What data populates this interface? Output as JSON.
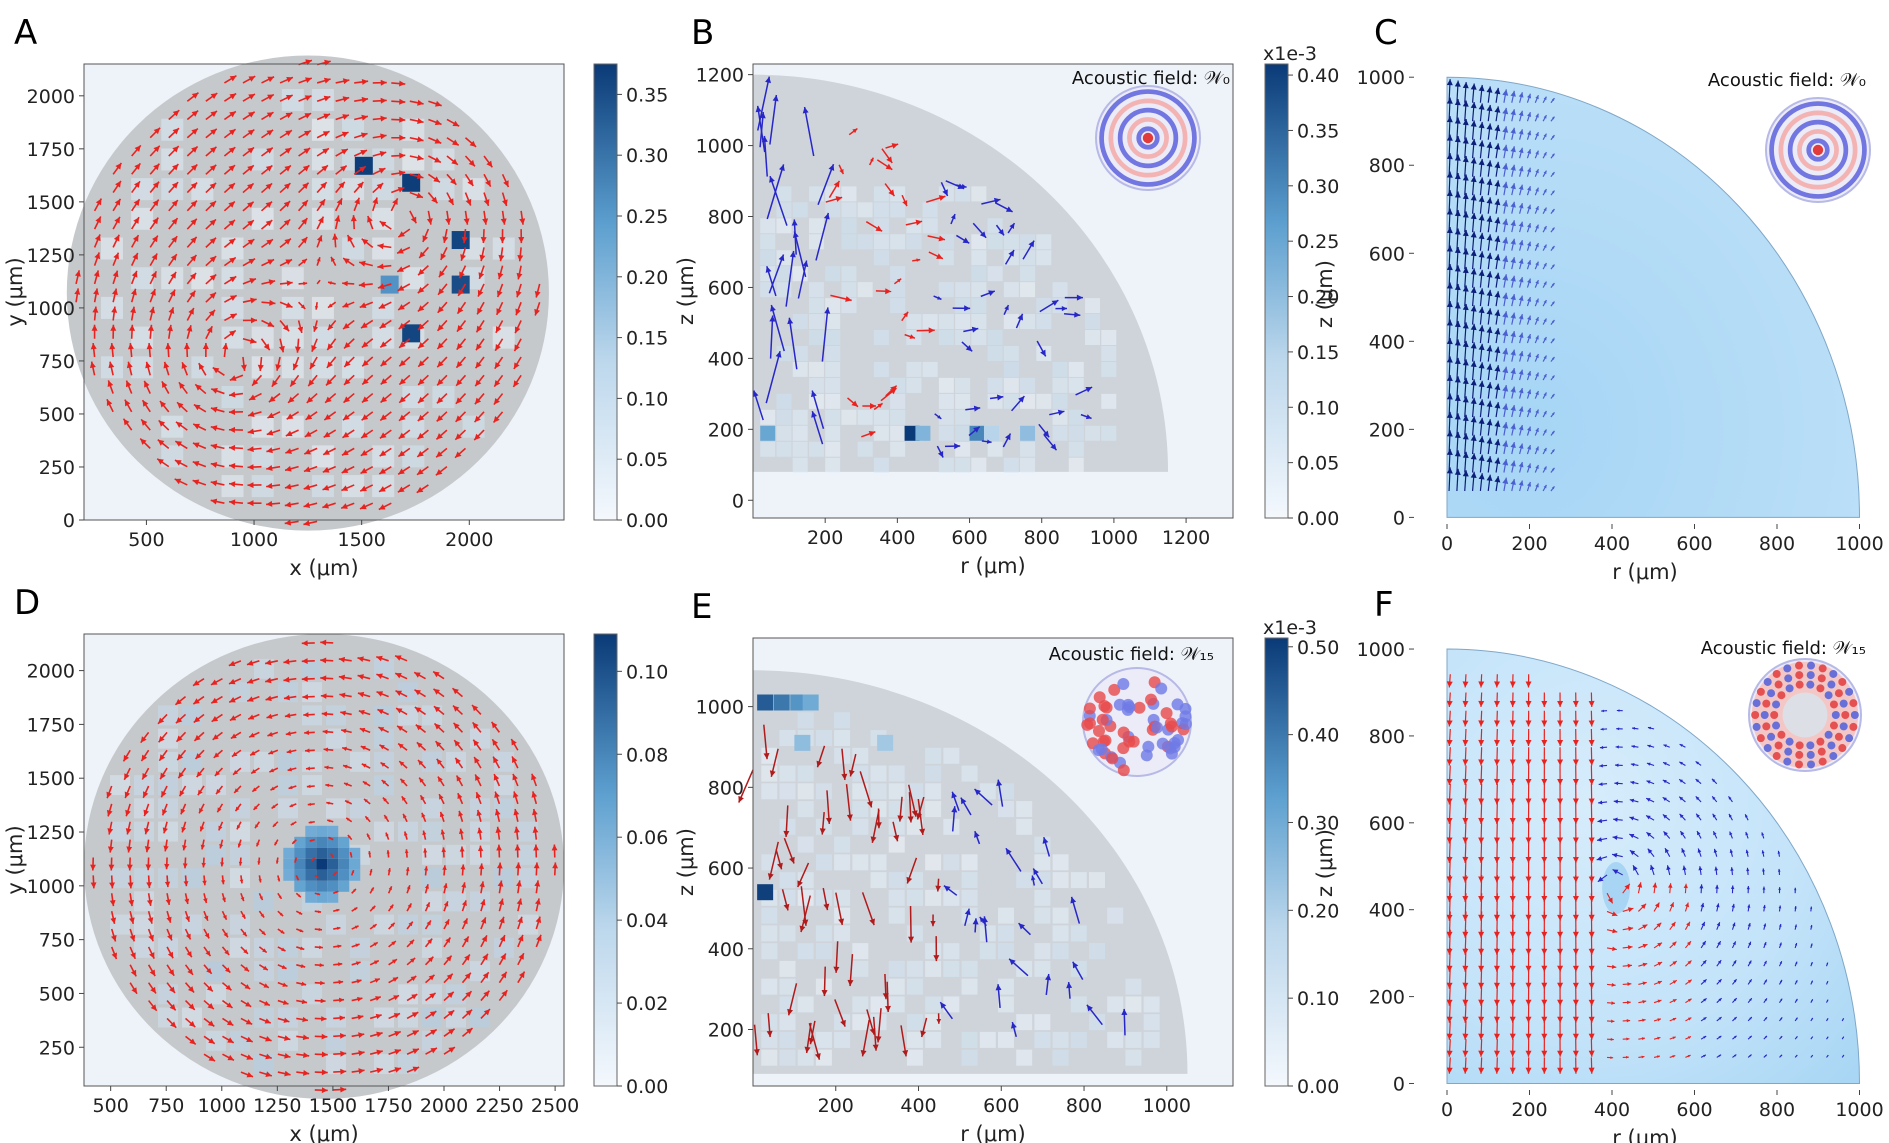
{
  "colors": {
    "arrow_red": "#e8231f",
    "arrow_dark_red": "#b11a1a",
    "arrow_blue": "#2727c8",
    "arrow_navy": "#0d1f7a",
    "disk": "#c6c9cc",
    "sim_fill": "#a9d6f5",
    "plot_bg": "#eef3fa",
    "cmap_low": "#f4f8fd",
    "cmap_high": "#0a3a77"
  },
  "chart_data": [
    {
      "panel": "A",
      "type": "quiver",
      "xlabel": "x (μm)",
      "ylabel": "y (μm)",
      "xlim": [
        210,
        2440
      ],
      "ylim": [
        0,
        2150
      ],
      "xticks": [
        "500",
        "1000",
        "1500",
        "2000"
      ],
      "xtick_values": [
        500,
        1000,
        1500,
        2000
      ],
      "yticks": [
        "0",
        "250",
        "500",
        "750",
        "1000",
        "1250",
        "1500",
        "1750",
        "2000"
      ],
      "ytick_values": [
        0,
        250,
        500,
        750,
        1000,
        1250,
        1500,
        1750,
        2000
      ],
      "colorbar_ticks": [
        "0.00",
        "0.05",
        "0.10",
        "0.15",
        "0.20",
        "0.25",
        "0.30",
        "0.35"
      ],
      "colorbar_values": [
        0,
        0.05,
        0.1,
        0.15,
        0.2,
        0.25,
        0.3,
        0.35
      ],
      "colorbar_max": 0.375,
      "colorbar_scale_label": "",
      "disk_center": [
        1250,
        1070
      ],
      "disk_radius": 1120,
      "flow": "two counter-rotating vortices (lower-left and upper-right)",
      "arrow_color": "red",
      "hot_cells": [
        [
          1510,
          1670,
          0.37
        ],
        [
          1730,
          1590,
          0.37
        ],
        [
          1960,
          1320,
          0.36
        ],
        [
          1960,
          1110,
          0.35
        ],
        [
          1730,
          880,
          0.36
        ],
        [
          1630,
          1110,
          0.26
        ]
      ]
    },
    {
      "panel": "B",
      "type": "quiver",
      "xlabel": "r (μm)",
      "ylabel": "z (μm)",
      "xlim": [
        0,
        1330
      ],
      "ylim": [
        -50,
        1230
      ],
      "xticks": [
        "200",
        "400",
        "600",
        "800",
        "1000",
        "1200"
      ],
      "xtick_values": [
        200,
        400,
        600,
        800,
        1000,
        1200
      ],
      "yticks": [
        "0",
        "200",
        "400",
        "600",
        "800",
        "1000",
        "1200"
      ],
      "ytick_values": [
        0,
        200,
        400,
        600,
        800,
        1000,
        1200
      ],
      "colorbar_ticks": [
        "0.00",
        "0.05",
        "0.10",
        "0.15",
        "0.20",
        "0.25",
        "0.30",
        "0.35",
        "0.40"
      ],
      "colorbar_values": [
        0,
        0.05,
        0.1,
        0.15,
        0.2,
        0.25,
        0.3,
        0.35,
        0.4
      ],
      "colorbar_max": 0.41,
      "colorbar_scale_label": "x1e-3",
      "annotation": "Acoustic field: 𝒲₀",
      "arrow_colors": "blue (left) and red (centre)",
      "inset_pattern": "concentric rings"
    },
    {
      "panel": "C",
      "type": "quiver",
      "xlabel": "r (μm)",
      "ylabel": "z (μm)",
      "xlim": [
        -80,
        1040
      ],
      "ylim": [
        -15,
        1030
      ],
      "xticks": [
        "0",
        "200",
        "400",
        "600",
        "800",
        "1000"
      ],
      "xtick_values": [
        0,
        200,
        400,
        600,
        800,
        1000
      ],
      "yticks": [
        "0",
        "200",
        "400",
        "600",
        "800",
        "1000"
      ],
      "ytick_values": [
        0,
        200,
        400,
        600,
        800,
        1000
      ],
      "annotation": "Acoustic field: 𝒲₀",
      "domain": "quarter circle radius 1000 μm",
      "arrow_colors": "navy vertical arrows near r = 0",
      "inset_pattern": "concentric rings"
    },
    {
      "panel": "D",
      "type": "quiver",
      "xlabel": "x (μm)",
      "ylabel": "y (μm)",
      "xlim": [
        380,
        2540
      ],
      "ylim": [
        70,
        2170
      ],
      "xticks": [
        "500",
        "750",
        "1000",
        "1250",
        "1500",
        "1750",
        "2000",
        "2250",
        "2500"
      ],
      "xtick_values": [
        500,
        750,
        1000,
        1250,
        1500,
        1750,
        2000,
        2250,
        2500
      ],
      "yticks": [
        "250",
        "500",
        "750",
        "1000",
        "1250",
        "1500",
        "1750",
        "2000"
      ],
      "ytick_values": [
        250,
        500,
        750,
        1000,
        1250,
        1500,
        1750,
        2000
      ],
      "colorbar_ticks": [
        "0.00",
        "0.02",
        "0.04",
        "0.06",
        "0.08",
        "0.10"
      ],
      "colorbar_values": [
        0,
        0.02,
        0.04,
        0.06,
        0.08,
        0.1
      ],
      "colorbar_max": 0.109,
      "colorbar_scale_label": "",
      "disk_center": [
        1460,
        1090
      ],
      "disk_radius": 1080,
      "flow": "single vortex centred near (1450, 1100)",
      "arrow_color": "red"
    },
    {
      "panel": "E",
      "type": "quiver",
      "xlabel": "r (μm)",
      "ylabel": "z (μm)",
      "xlim": [
        0,
        1160
      ],
      "ylim": [
        60,
        1170
      ],
      "xticks": [
        "200",
        "400",
        "600",
        "800",
        "1000"
      ],
      "xtick_values": [
        200,
        400,
        600,
        800,
        1000
      ],
      "yticks": [
        "200",
        "400",
        "600",
        "800",
        "1000"
      ],
      "ytick_values": [
        200,
        400,
        600,
        800,
        1000
      ],
      "colorbar_ticks": [
        "0.00",
        "0.10",
        "0.20",
        "0.30",
        "0.40",
        "0.50"
      ],
      "colorbar_values": [
        0,
        0.1,
        0.2,
        0.3,
        0.4,
        0.5
      ],
      "colorbar_max": 0.51,
      "colorbar_scale_label": "x1e-3",
      "annotation": "Acoustic field: 𝒲₁₅",
      "arrow_colors": "dark red (left) and blue (right)",
      "inset_pattern": "modal lobes"
    },
    {
      "panel": "F",
      "type": "quiver",
      "xlabel": "r (μm)",
      "ylabel": "z (μm)",
      "xlim": [
        -80,
        1040
      ],
      "ylim": [
        -15,
        1030
      ],
      "xticks": [
        "0",
        "200",
        "400",
        "600",
        "800",
        "1000"
      ],
      "xtick_values": [
        0,
        200,
        400,
        600,
        800,
        1000
      ],
      "yticks": [
        "0",
        "200",
        "400",
        "600",
        "800",
        "1000"
      ],
      "ytick_values": [
        0,
        200,
        400,
        600,
        800,
        1000
      ],
      "annotation": "Acoustic field: 𝒲₁₅",
      "domain": "quarter circle radius 1000 μm",
      "arrow_colors": "red downward arrows left of r ≈ 380, blue arrows to the right",
      "inset_pattern": "ring of lobes"
    }
  ]
}
